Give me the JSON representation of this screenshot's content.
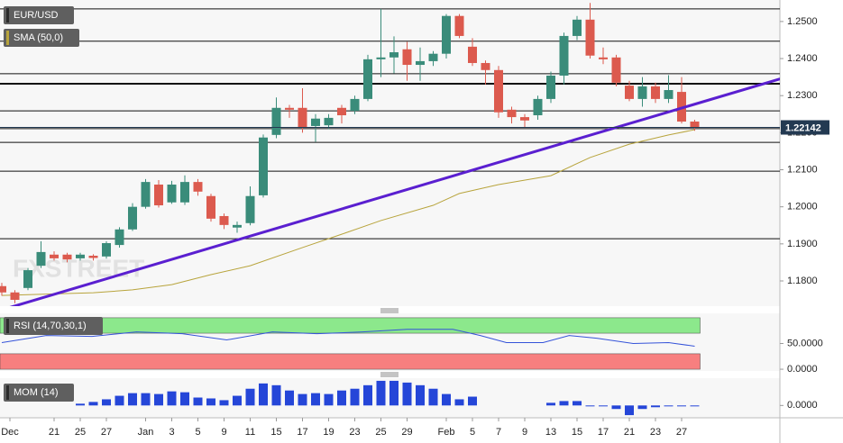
{
  "chart_data": [
    {
      "type": "candlestick",
      "name": "EUR/USD",
      "watermark": "FXSTREET",
      "categories": [
        "Dec",
        null,
        null,
        null,
        "21",
        null,
        "25",
        null,
        "27",
        null,
        null,
        "Jan",
        null,
        "3",
        null,
        "5",
        null,
        "9",
        null,
        "11",
        null,
        "15",
        null,
        "17",
        null,
        "19",
        null,
        "23",
        null,
        "25",
        null,
        "29",
        null,
        null,
        "Feb",
        null,
        "5",
        null,
        "7",
        null,
        "9",
        null,
        "13",
        null,
        "15",
        null,
        "17",
        null,
        "21",
        null,
        "23",
        null,
        "27",
        null
      ],
      "open": [
        1.1786,
        1.1769,
        1.1781,
        1.1841,
        1.1871,
        1.1871,
        1.1861,
        1.1868,
        1.1866,
        1.1897,
        1.1939,
        1.2,
        1.206,
        1.2012,
        1.2012,
        1.2067,
        1.2029,
        1.1975,
        1.1944,
        1.1956,
        1.2031,
        1.2194,
        1.2267,
        1.2267,
        1.2218,
        1.222,
        1.2267,
        1.2259,
        1.2291,
        1.2398,
        1.2403,
        1.2425,
        1.2383,
        1.2393,
        1.2413,
        1.2515,
        1.2432,
        1.2388,
        1.2369,
        1.2262,
        1.2242,
        1.2247,
        1.2291,
        1.2354,
        1.2461,
        1.2505,
        1.2403,
        1.2403,
        1.2327,
        1.2291,
        1.2325,
        1.2291,
        1.231,
        1.223
      ],
      "high": [
        1.1795,
        1.1775,
        1.1835,
        1.1907,
        1.188,
        1.1876,
        1.1876,
        1.1872,
        1.1907,
        1.1945,
        1.201,
        1.2075,
        1.2072,
        1.207,
        1.2085,
        1.2075,
        1.2035,
        1.1982,
        1.196,
        1.2055,
        1.2195,
        1.2295,
        1.2275,
        1.232,
        1.225,
        1.225,
        1.2275,
        1.23,
        1.241,
        1.2534,
        1.246,
        1.2445,
        1.243,
        1.242,
        1.252,
        1.252,
        1.2455,
        1.2395,
        1.238,
        1.227,
        1.225,
        1.23,
        1.2365,
        1.247,
        1.2515,
        1.255,
        1.243,
        1.241,
        1.234,
        1.235,
        1.2335,
        1.2355,
        1.235,
        1.2235
      ],
      "low": [
        1.176,
        1.174,
        1.1775,
        1.1835,
        1.1855,
        1.185,
        1.1855,
        1.1855,
        1.186,
        1.189,
        1.1935,
        1.1995,
        1.1998,
        1.2008,
        1.2005,
        1.203,
        1.196,
        1.194,
        1.193,
        1.195,
        1.2025,
        1.2185,
        1.224,
        1.22,
        1.2175,
        1.221,
        1.2225,
        1.225,
        1.2285,
        1.235,
        1.236,
        1.234,
        1.234,
        1.238,
        1.24,
        1.2455,
        1.238,
        1.233,
        1.224,
        1.2225,
        1.2215,
        1.2235,
        1.228,
        1.233,
        1.245,
        1.24,
        1.2385,
        1.2325,
        1.2285,
        1.227,
        1.228,
        1.228,
        1.2225,
        1.2205
      ],
      "close": [
        1.1769,
        1.1749,
        1.1829,
        1.1878,
        1.1861,
        1.1858,
        1.1871,
        1.1862,
        1.1902,
        1.1939,
        1.2,
        1.2067,
        1.2004,
        1.206,
        1.2067,
        1.2041,
        1.1968,
        1.1951,
        1.1951,
        1.2029,
        1.2187,
        1.2267,
        1.2262,
        1.2213,
        1.2238,
        1.224,
        1.2247,
        1.2291,
        1.2398,
        1.2403,
        1.2417,
        1.2383,
        1.2393,
        1.2413,
        1.2515,
        1.2461,
        1.2388,
        1.2369,
        1.2255,
        1.2242,
        1.2233,
        1.2291,
        1.2354,
        1.2461,
        1.2505,
        1.2408,
        1.2398,
        1.2335,
        1.2291,
        1.2325,
        1.2291,
        1.2315,
        1.223,
        1.2214
      ],
      "up_color": "#3a8c7a",
      "down_color": "#dc5a4e",
      "ylim": [
        1.1732,
        1.2558
      ],
      "yticks": [
        {
          "value": 1.18,
          "label": "1.1800"
        },
        {
          "value": 1.19,
          "label": "1.1900"
        },
        {
          "value": 1.2,
          "label": "1.2000"
        },
        {
          "value": 1.21,
          "label": "1.2100"
        },
        {
          "value": 1.22,
          "label": "1.2200"
        },
        {
          "value": 1.23,
          "label": "1.2300"
        },
        {
          "value": 1.24,
          "label": "1.2400"
        },
        {
          "value": 1.25,
          "label": "1.2500"
        }
      ],
      "last_price": 1.22142,
      "last_price_color": "#233a52",
      "levels": [
        1.2534,
        1.2447,
        1.2359,
        1.2332,
        1.2259,
        1.2211,
        1.2174,
        1.2096,
        1.1914
      ],
      "bold_levels": [
        1.2332
      ],
      "trendline": {
        "x": [
          0,
          59.7
        ],
        "values": [
          1.1722,
          1.2347
        ],
        "color": "#5a1fd0"
      },
      "sma": {
        "name": "SMA (50,0)",
        "color": "#b8a43c",
        "x": [
          0,
          7,
          10,
          13,
          16,
          19,
          23,
          26,
          29,
          33,
          35,
          38,
          42,
          45,
          48,
          51,
          53
        ],
        "values": [
          1.1761,
          1.1768,
          1.1776,
          1.179,
          1.1817,
          1.1841,
          1.189,
          1.1926,
          1.1963,
          1.2004,
          1.2036,
          1.206,
          1.2084,
          1.2133,
          1.2169,
          1.2194,
          1.2208
        ]
      }
    },
    {
      "type": "line",
      "title": "RSI (14,70,30,1)",
      "color": "#3553d9",
      "x": [
        0,
        3.4,
        6.9,
        10.3,
        13.8,
        17.2,
        20.7,
        24.1,
        27.6,
        31,
        34.5,
        36.6,
        38.6,
        41.4,
        43.4,
        45.5,
        48.3,
        51,
        53
      ],
      "values": [
        51.7,
        65.5,
        63.8,
        72.4,
        69,
        56.9,
        72.4,
        69,
        72.4,
        77.6,
        77.6,
        65.5,
        51.7,
        51.7,
        65.5,
        60.3,
        50,
        51.7,
        44.8
      ],
      "bands": [
        {
          "range": [
            70,
            100
          ],
          "color": "#8ce88c"
        },
        {
          "range": [
            0,
            30
          ],
          "color": "#f77f7f"
        }
      ],
      "ylim": [
        -3.4,
        108.6
      ],
      "yticks": [
        {
          "value": 50,
          "label": "50.0000"
        },
        {
          "value": 0,
          "label": "0.0000"
        }
      ]
    },
    {
      "type": "bar",
      "title": "MOM (14)",
      "color": "#2546d8",
      "values": [
        null,
        null,
        null,
        null,
        null,
        null,
        0.002,
        0.004,
        0.007,
        0.011,
        0.014,
        0.014,
        0.013,
        0.016,
        0.015,
        0.009,
        0.008,
        0.006,
        0.011,
        0.019,
        0.025,
        0.023,
        0.017,
        0.013,
        0.014,
        0.013,
        0.017,
        0.019,
        0.023,
        0.028,
        0.028,
        0.026,
        0.023,
        0.019,
        0.013,
        0.007,
        0.01,
        null,
        null,
        null,
        null,
        null,
        0.003,
        0.005,
        0.005,
        -0.001,
        -0.001,
        -0.004,
        -0.011,
        -0.004,
        -0.002,
        -0.001,
        -0.001,
        -0.001
      ],
      "ylim": [
        -0.014,
        0.031
      ],
      "yticks": [
        {
          "value": 0,
          "label": "0.0000"
        }
      ]
    }
  ]
}
